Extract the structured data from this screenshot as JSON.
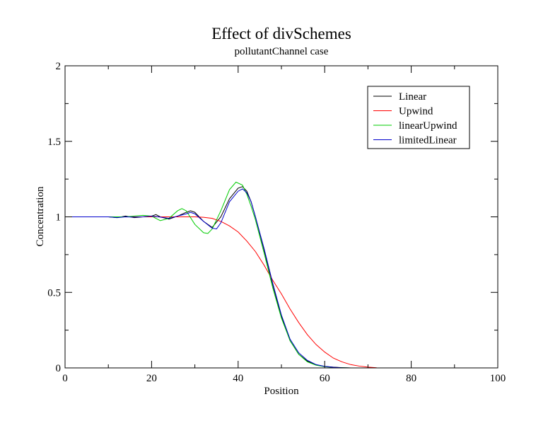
{
  "chart_data": {
    "type": "line",
    "title": "Effect of divSchemes",
    "subtitle": "pollutantChannel case",
    "xlabel": "Position",
    "ylabel": "Concentration",
    "xlim": [
      0,
      100
    ],
    "ylim": [
      0,
      2
    ],
    "x_ticks": [
      "0",
      "20",
      "40",
      "60",
      "80",
      "100"
    ],
    "y_ticks": [
      "0",
      "0.5",
      "1",
      "1.5",
      "2"
    ],
    "grid": false,
    "legend_position": "top-right",
    "series": [
      {
        "name": "Linear",
        "color": "#000000",
        "x": [
          0,
          10,
          12,
          14,
          16,
          18,
          20,
          21,
          22,
          24,
          26,
          28,
          29,
          30,
          32,
          34,
          36,
          38,
          40,
          41,
          42,
          43,
          44,
          46,
          48,
          50,
          52,
          54,
          56,
          58,
          60,
          62,
          64,
          66
        ],
        "y": [
          1,
          1,
          0.995,
          1.005,
          0.995,
          1.0,
          1.005,
          1.015,
          1.0,
          0.985,
          1.005,
          1.03,
          1.04,
          1.03,
          0.97,
          0.93,
          1.0,
          1.12,
          1.19,
          1.2,
          1.17,
          1.1,
          1.0,
          0.78,
          0.55,
          0.34,
          0.18,
          0.09,
          0.045,
          0.02,
          0.01,
          0.005,
          0.002,
          0
        ]
      },
      {
        "name": "Upwind",
        "color": "#ff0000",
        "x": [
          0,
          30,
          32,
          34,
          36,
          38,
          40,
          42,
          44,
          46,
          48,
          50,
          52,
          54,
          56,
          58,
          60,
          62,
          64,
          66,
          68,
          70,
          72
        ],
        "y": [
          1,
          1,
          0.997,
          0.99,
          0.97,
          0.94,
          0.9,
          0.84,
          0.77,
          0.68,
          0.58,
          0.49,
          0.39,
          0.3,
          0.22,
          0.155,
          0.105,
          0.065,
          0.04,
          0.022,
          0.012,
          0.005,
          0.001
        ]
      },
      {
        "name": "linearUpwind",
        "color": "#00cc00",
        "x": [
          0,
          10,
          14,
          16,
          18,
          20,
          22,
          24,
          26,
          27,
          28,
          30,
          32,
          33,
          34,
          36,
          38,
          39.5,
          41,
          42,
          43,
          44,
          46,
          48,
          50,
          52,
          54,
          56,
          58,
          60,
          62,
          64,
          66
        ],
        "y": [
          1,
          1,
          1.0,
          1.005,
          1.01,
          1.005,
          0.975,
          0.99,
          1.04,
          1.055,
          1.04,
          0.95,
          0.895,
          0.89,
          0.92,
          1.04,
          1.18,
          1.23,
          1.21,
          1.15,
          1.07,
          0.98,
          0.76,
          0.53,
          0.33,
          0.18,
          0.09,
          0.04,
          0.018,
          0.008,
          0.003,
          0.001,
          0
        ]
      },
      {
        "name": "limitedLinear",
        "color": "#0000cc",
        "x": [
          0,
          10,
          12,
          14,
          16,
          18,
          20,
          22,
          24,
          26,
          28,
          29,
          30,
          32,
          34,
          35,
          36,
          38,
          40,
          41,
          42,
          43,
          44,
          46,
          48,
          50,
          52,
          54,
          56,
          58,
          60,
          62,
          64,
          66
        ],
        "y": [
          1,
          1,
          0.995,
          1.0,
          0.998,
          1.0,
          1.005,
          0.998,
          0.99,
          1.005,
          1.02,
          1.03,
          1.02,
          0.97,
          0.925,
          0.92,
          0.96,
          1.1,
          1.17,
          1.185,
          1.16,
          1.1,
          1.0,
          0.79,
          0.56,
          0.35,
          0.19,
          0.1,
          0.05,
          0.022,
          0.01,
          0.004,
          0.001,
          0
        ]
      }
    ]
  }
}
